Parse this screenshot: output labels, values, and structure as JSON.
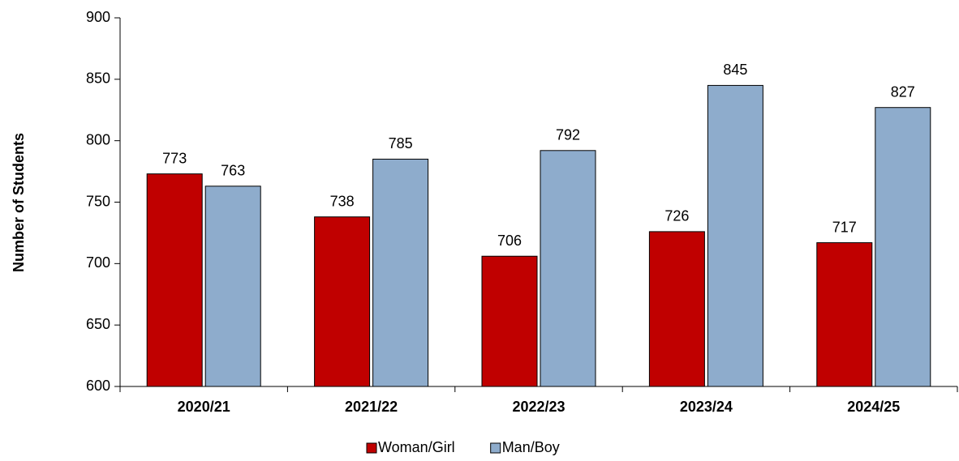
{
  "chart_data": {
    "type": "bar",
    "y_label": "Number of Students",
    "categories": [
      "2020/21",
      "2021/22",
      "2022/23",
      "2023/24",
      "2024/25"
    ],
    "series": [
      {
        "name": "Woman/Girl",
        "color": "#c00000",
        "values": [
          773,
          738,
          706,
          726,
          717
        ]
      },
      {
        "name": "Man/Boy",
        "color": "#8eaccc",
        "values": [
          763,
          785,
          792,
          845,
          827
        ]
      }
    ],
    "ylim": [
      600,
      900
    ],
    "yticks": [
      600,
      650,
      700,
      750,
      800,
      850,
      900
    ],
    "legend": "bottom"
  }
}
